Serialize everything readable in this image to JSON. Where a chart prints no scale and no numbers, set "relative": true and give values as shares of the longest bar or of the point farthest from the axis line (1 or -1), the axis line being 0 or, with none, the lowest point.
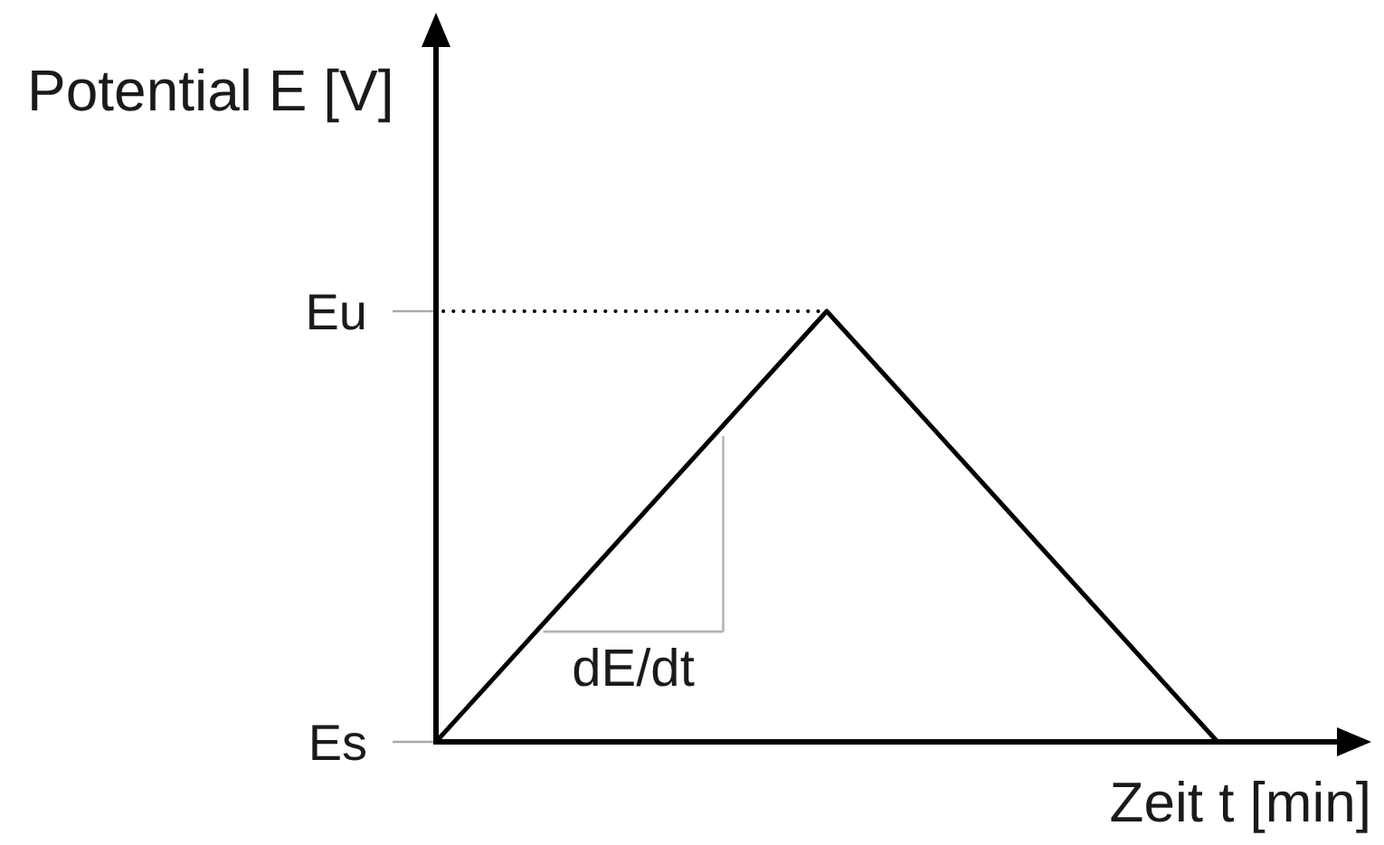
{
  "chart_data": {
    "type": "line",
    "xlabel": "Zeit t [min]",
    "ylabel": "Potential E [V]",
    "categories": [
      null,
      null,
      null
    ],
    "series": [
      {
        "color": "#000000",
        "values": [
          0,
          1,
          0
        ]
      }
    ],
    "relative": true,
    "ref_lines": [
      {
        "axis": "y",
        "value": 1,
        "label": "Eu",
        "color": "#000000",
        "line_style": "dotted"
      }
    ],
    "annotations": [
      "Es",
      "dE/dt"
    ]
  }
}
